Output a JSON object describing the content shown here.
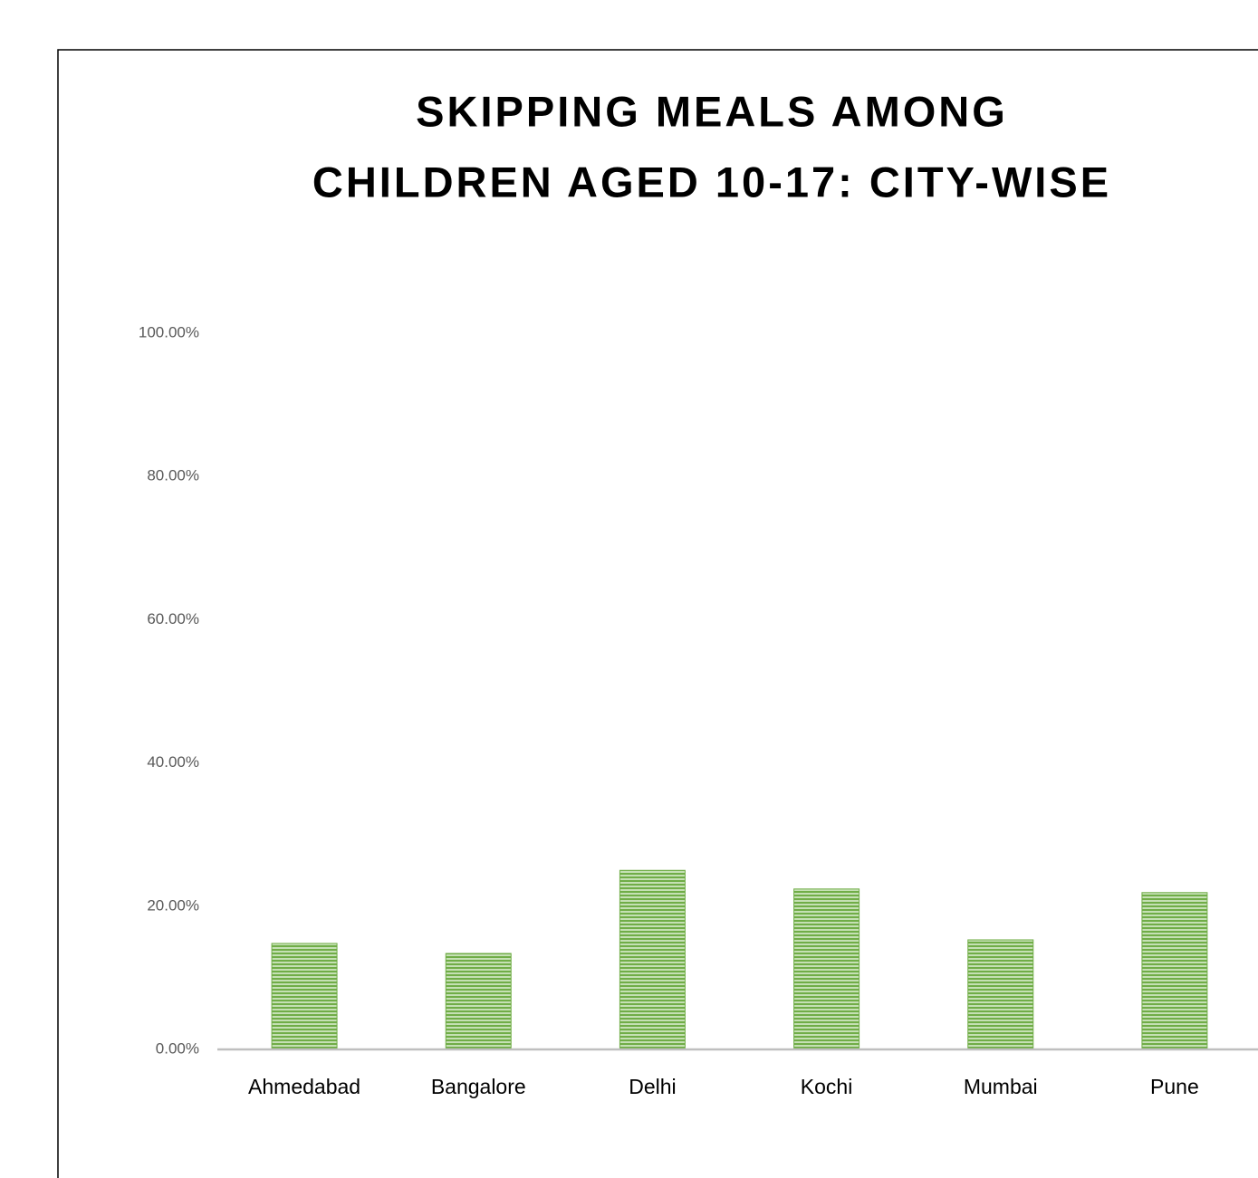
{
  "chart_data": {
    "type": "bar",
    "title": [
      "SKIPPING MEALS AMONG",
      "CHILDREN AGED 10-17: CITY-WISE"
    ],
    "categories": [
      "Ahmedabad",
      "Bangalore",
      "Delhi",
      "Kochi",
      "Mumbai",
      "Pune"
    ],
    "values": [
      14.8,
      13.4,
      25.0,
      22.4,
      15.3,
      21.9
    ],
    "color": "#70ad47",
    "ylim": [
      0,
      100
    ],
    "yticks": [
      {
        "value": 0,
        "label": "0.00%"
      },
      {
        "value": 20,
        "label": "20.00%"
      },
      {
        "value": 40,
        "label": "40.00%"
      },
      {
        "value": 60,
        "label": "60.00%"
      },
      {
        "value": 80,
        "label": "80.00%"
      },
      {
        "value": 100,
        "label": "100.00%"
      }
    ],
    "grid": false
  }
}
